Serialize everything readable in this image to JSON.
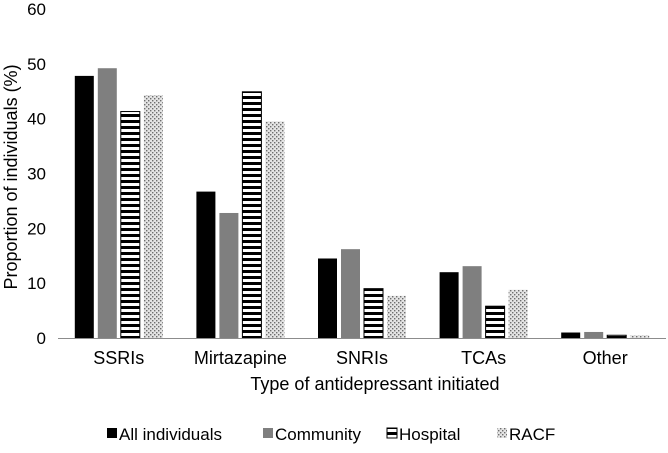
{
  "chart_data": {
    "type": "bar",
    "title": "",
    "xlabel": "Type of antidepressant initiated",
    "ylabel": "Proportion of individuals (%)",
    "ylim": [
      0,
      60
    ],
    "yticks": [
      0,
      10,
      20,
      30,
      40,
      50,
      60
    ],
    "grid": false,
    "legend_position": "bottom",
    "categories": [
      "SSRIs",
      "Mirtazapine",
      "SNRIs",
      "TCAs",
      "Other"
    ],
    "series": [
      {
        "name": "All individuals",
        "pattern": "solid-black",
        "values": [
          47.8,
          26.7,
          14.5,
          12.0,
          1.0
        ]
      },
      {
        "name": "Community",
        "pattern": "solid-gray",
        "values": [
          49.2,
          22.8,
          16.2,
          13.1,
          1.1
        ]
      },
      {
        "name": "Hospital",
        "pattern": "horizontal-stripes",
        "values": [
          41.3,
          44.9,
          9.0,
          5.8,
          0.5
        ]
      },
      {
        "name": "RACF",
        "pattern": "crosshatch",
        "values": [
          44.3,
          39.5,
          7.7,
          8.8,
          0.5
        ]
      }
    ]
  }
}
